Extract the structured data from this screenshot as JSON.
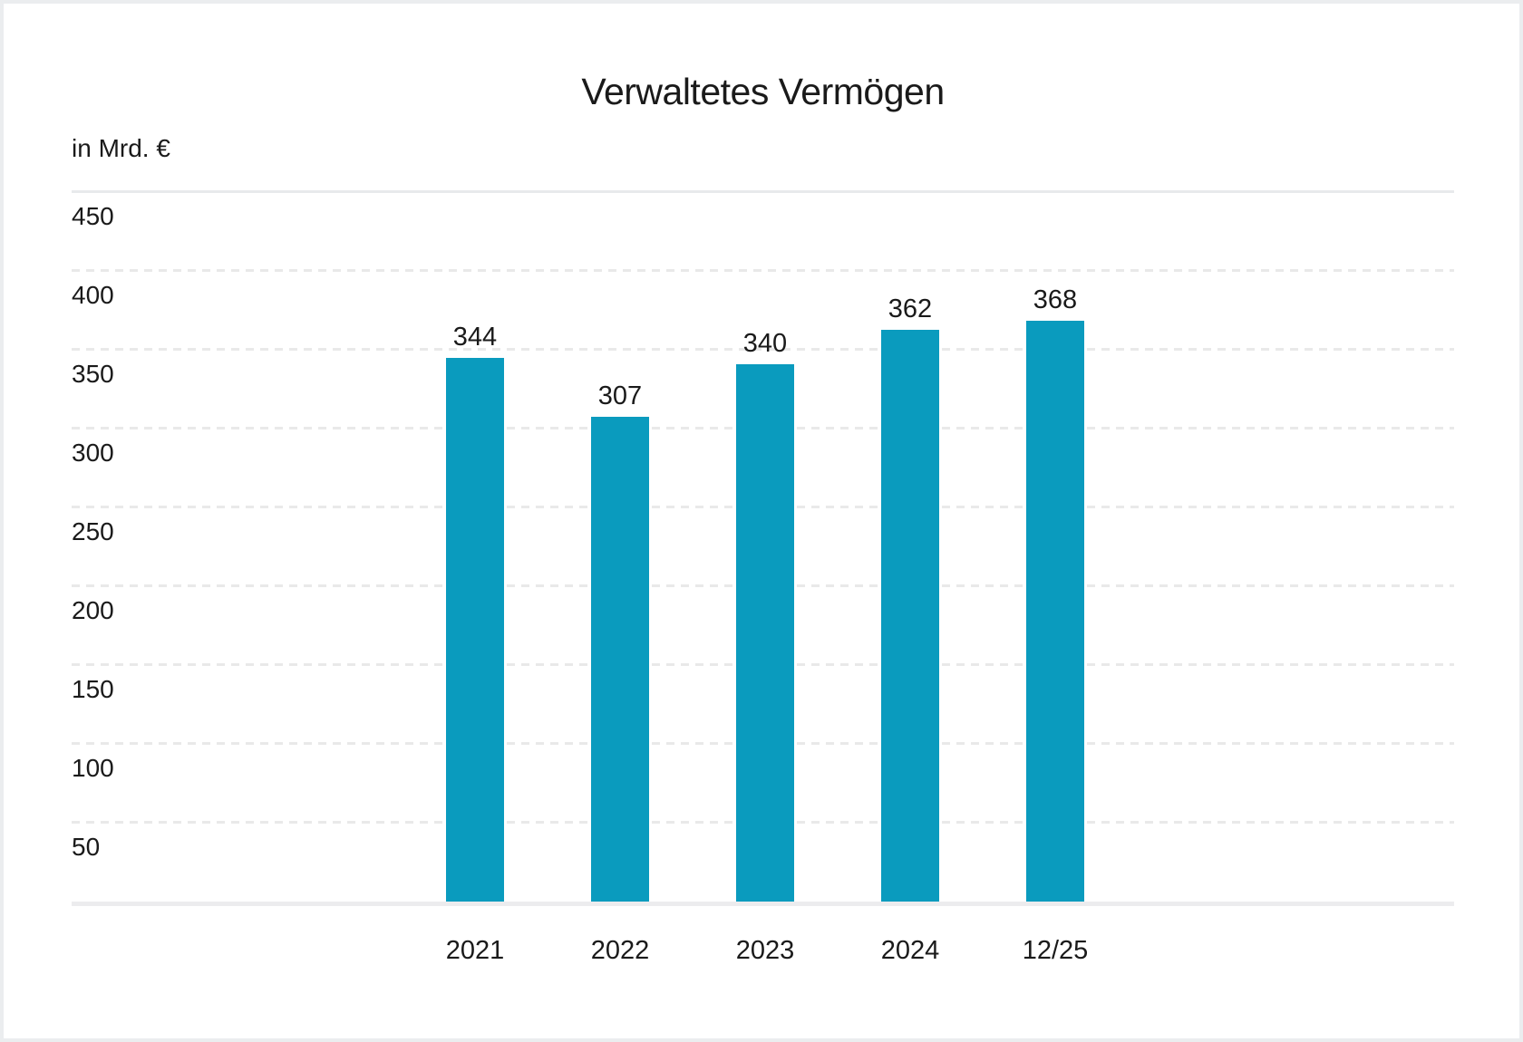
{
  "chart": {
    "title": "Verwaltetes Vermögen",
    "unit_label": "in Mrd. €"
  },
  "chart_data": {
    "type": "bar",
    "title": "Verwaltetes Vermögen",
    "ylabel": "in Mrd. €",
    "xlabel": "",
    "categories": [
      "2021",
      "2022",
      "2023",
      "2024",
      "12/25"
    ],
    "values": [
      344,
      307,
      340,
      362,
      368
    ],
    "value_labels_shown": true,
    "ylim": [
      0,
      450
    ],
    "yticks": [
      450,
      400,
      350,
      300,
      250,
      200,
      150,
      100,
      50
    ],
    "grid": "horizontal, dashed light gray; solid line at 450 and at baseline",
    "legend": "none"
  },
  "colors": {
    "bar": "#0a9bbe",
    "text": "#1a1a1a",
    "gridline": "#e9e9e9",
    "gridline_solid": "#e8eaec",
    "axis_line": "#ececee",
    "card_border": "#ebedef",
    "background": "#ffffff"
  }
}
